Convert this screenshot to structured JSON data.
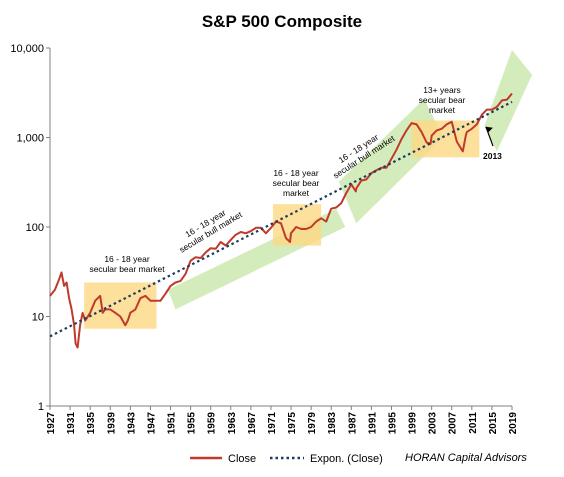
{
  "chart_data": {
    "type": "line",
    "title": "S&P 500 Composite",
    "y_scale": "log",
    "ylim": [
      1,
      10000
    ],
    "y_ticks": [
      "1",
      "10",
      "100",
      "1,000",
      "10,000"
    ],
    "xlim": [
      1927,
      2019
    ],
    "x_ticks": [
      "1927",
      "1931",
      "1935",
      "1939",
      "1943",
      "1947",
      "1951",
      "1955",
      "1959",
      "1963",
      "1967",
      "1971",
      "1975",
      "1979",
      "1983",
      "1987",
      "1991",
      "1995",
      "1999",
      "2003",
      "2007",
      "2011",
      "2015",
      "2019"
    ],
    "grid": false,
    "legend_position": "bottom",
    "series": [
      {
        "name": "Close",
        "color": "#c0392b",
        "x": [
          1927,
          1928,
          1928.7,
          1929.3,
          1929.8,
          1930.3,
          1930.8,
          1931.3,
          1931.8,
          1932.1,
          1932.5,
          1933,
          1933.5,
          1934,
          1935,
          1936,
          1937,
          1937.5,
          1938,
          1939,
          1940,
          1941,
          1942,
          1942.5,
          1943,
          1944,
          1945,
          1946,
          1947,
          1948,
          1949,
          1950,
          1951,
          1952,
          1953,
          1954,
          1955,
          1956,
          1957,
          1958,
          1959,
          1960,
          1961,
          1962,
          1963,
          1964,
          1965,
          1966,
          1967,
          1968,
          1969,
          1970,
          1971,
          1972,
          1973,
          1974,
          1974.8,
          1975,
          1976,
          1977,
          1978,
          1979,
          1980,
          1981,
          1982,
          1983,
          1984,
          1985,
          1986,
          1987,
          1987.9,
          1988,
          1989,
          1990,
          1991,
          1992,
          1993,
          1994,
          1995,
          1996,
          1997,
          1998,
          1999,
          2000,
          2001,
          2002,
          2002.8,
          2003,
          2004,
          2005,
          2006,
          2007,
          2008,
          2009.2,
          2009.8,
          2010,
          2011,
          2012,
          2013,
          2014,
          2015,
          2016,
          2017,
          2018,
          2019
        ],
        "y": [
          17,
          20,
          25,
          31,
          22,
          24,
          16,
          12,
          8,
          5,
          4.5,
          8,
          11,
          9,
          11,
          15,
          17,
          11,
          12,
          12,
          11,
          10,
          8,
          9,
          11,
          12,
          16,
          17,
          15,
          15,
          15,
          18,
          22,
          24,
          25,
          30,
          42,
          46,
          45,
          52,
          58,
          57,
          68,
          62,
          72,
          82,
          88,
          85,
          90,
          98,
          98,
          85,
          98,
          115,
          110,
          75,
          68,
          85,
          100,
          95,
          95,
          100,
          115,
          125,
          115,
          160,
          165,
          185,
          240,
          300,
          250,
          270,
          330,
          340,
          400,
          430,
          460,
          460,
          580,
          730,
          960,
          1200,
          1450,
          1400,
          1150,
          880,
          850,
          1050,
          1200,
          1250,
          1400,
          1500,
          900,
          700,
          1050,
          1150,
          1250,
          1400,
          1800,
          2050,
          2050,
          2200,
          2600,
          2650,
          3100
        ]
      },
      {
        "name": "Expon. (Close)",
        "color": "#1f3c5c",
        "x": [
          1927,
          2019
        ],
        "y": [
          6,
          2500
        ]
      }
    ],
    "annotations": [
      {
        "lines": [
          "16 - 18 year",
          "secular bear market"
        ]
      },
      {
        "lines": [
          "16 - 18 year",
          "secular bull market"
        ]
      },
      {
        "lines": [
          "16 - 18 year",
          "secular bear",
          "market"
        ]
      },
      {
        "lines": [
          "16 - 18 year",
          "secular bull market"
        ]
      },
      {
        "lines": [
          "13+ years",
          "secular bear",
          "market"
        ]
      },
      {
        "lines": [
          "2013"
        ]
      }
    ],
    "source_note": "HORAN Capital Advisors"
  }
}
